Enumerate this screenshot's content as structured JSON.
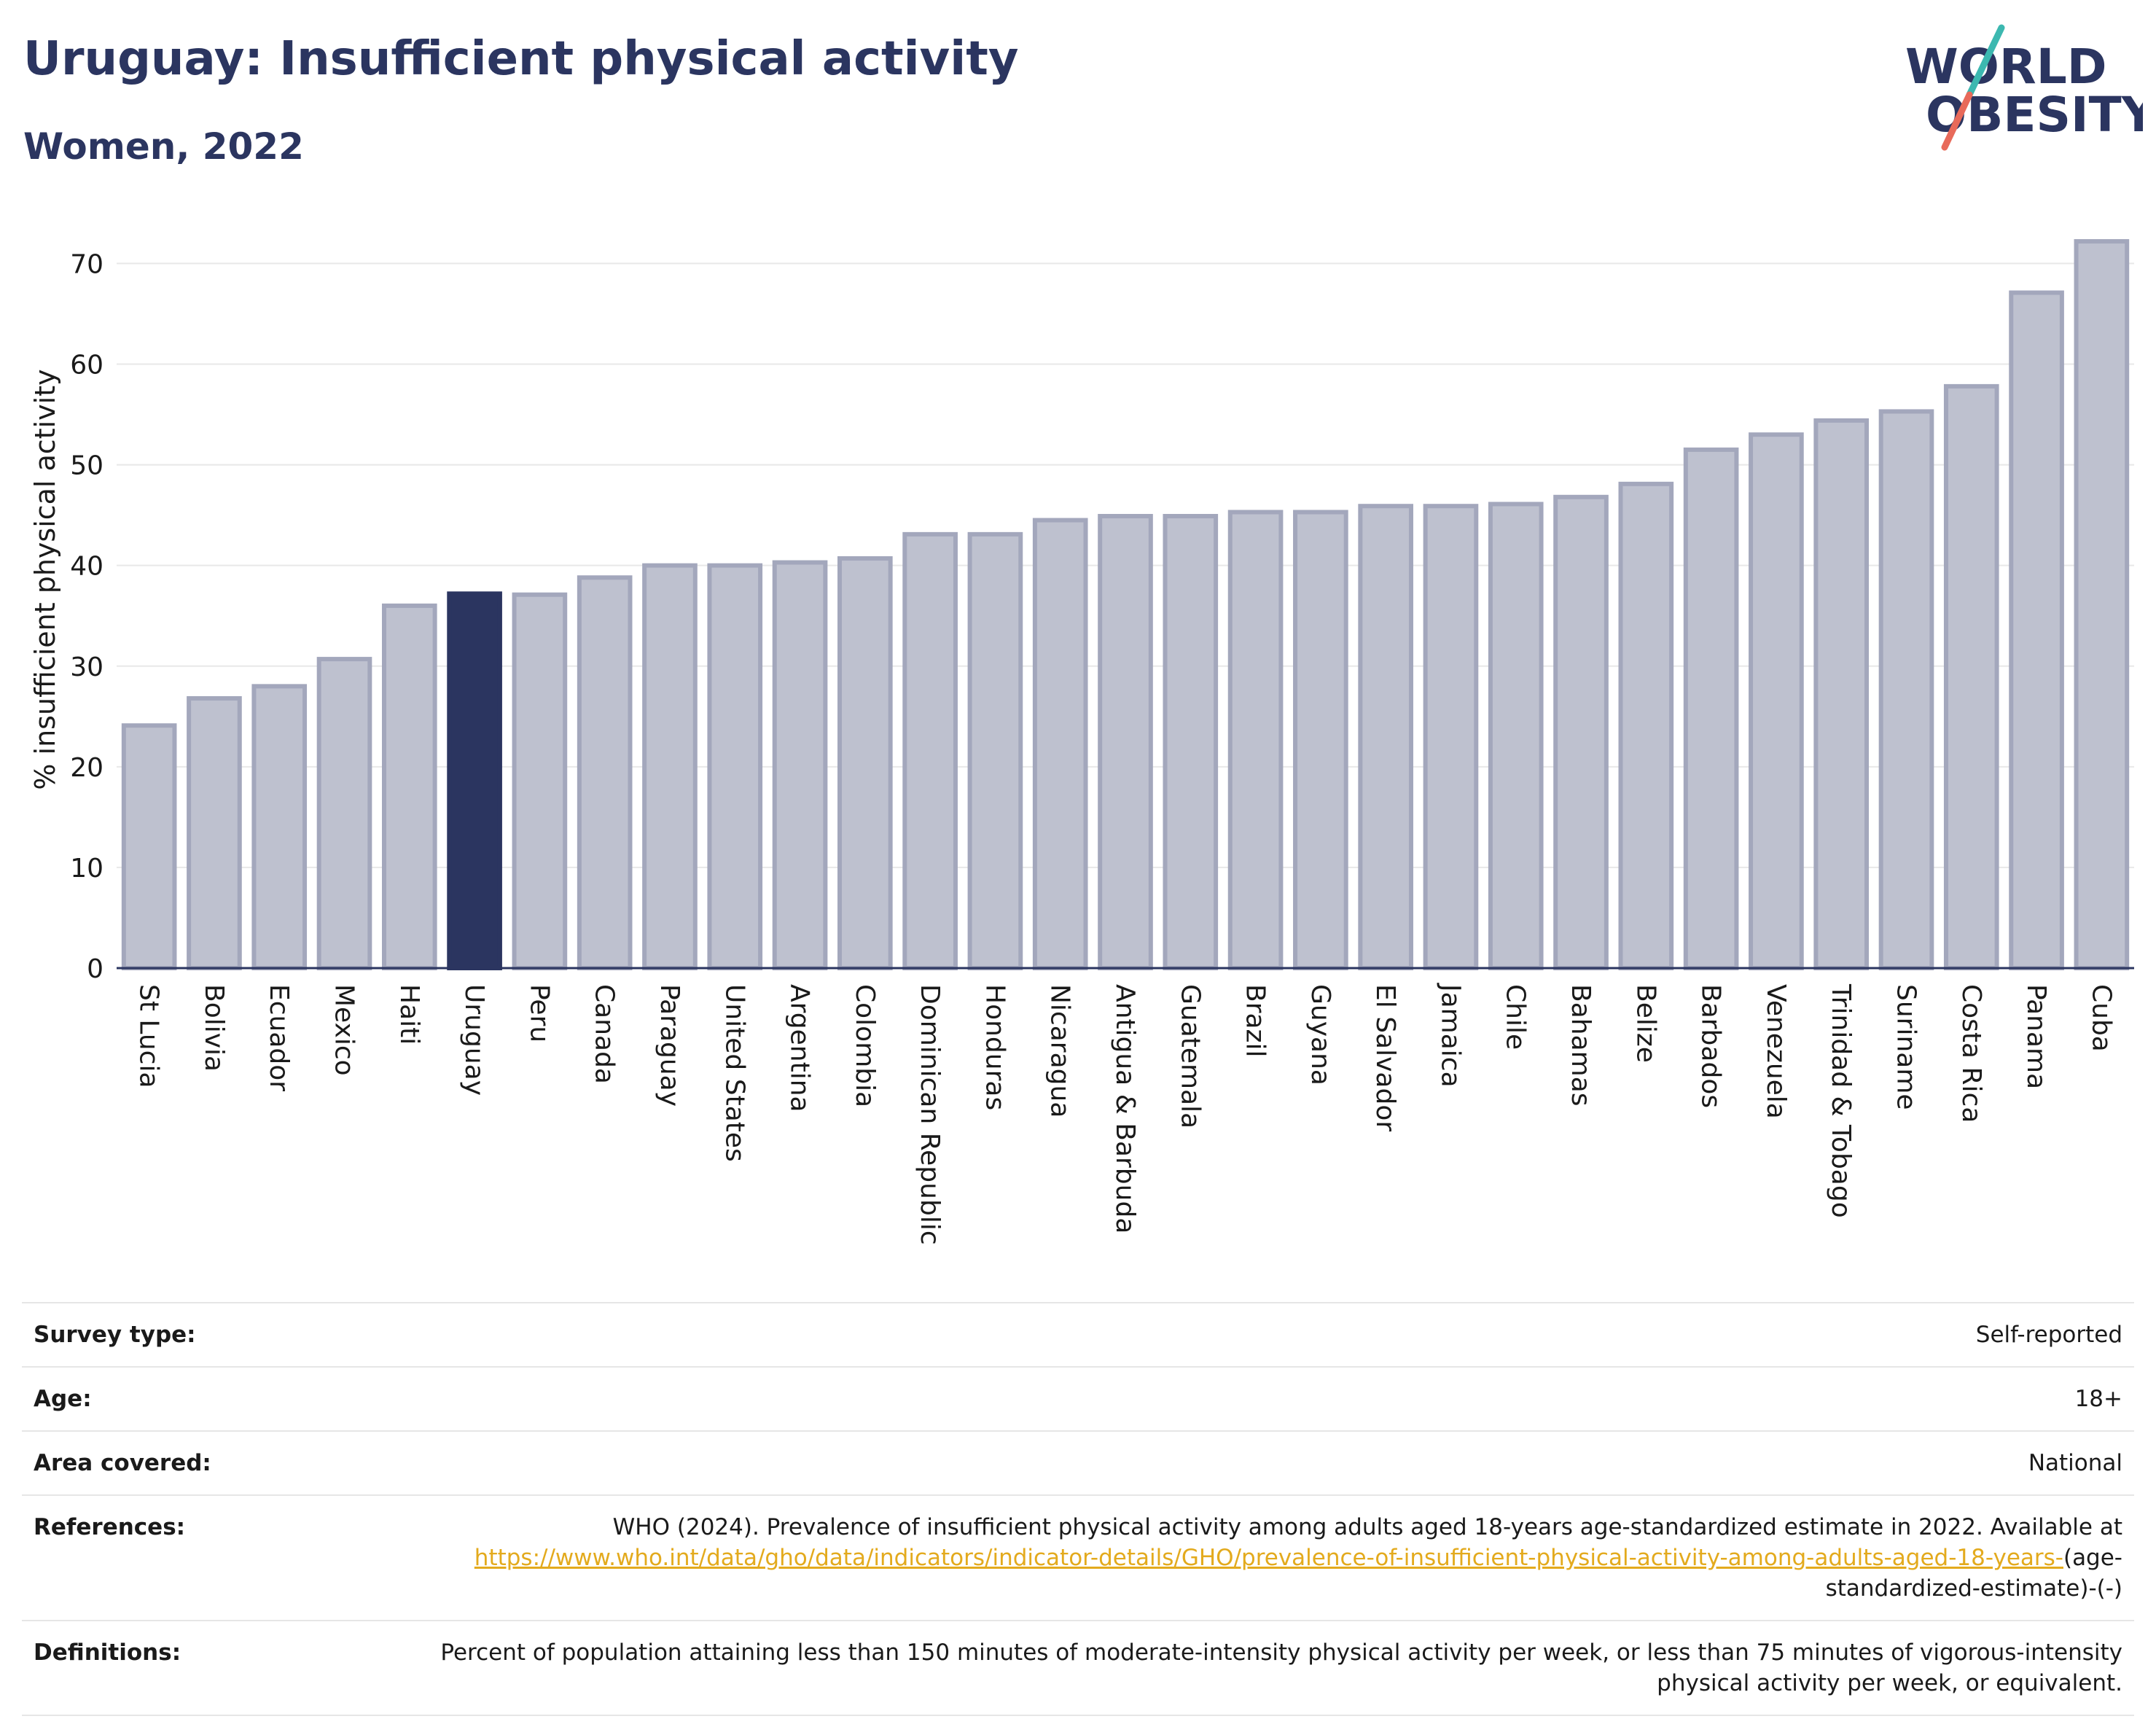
{
  "header": {
    "title": "Uruguay: Insufficient physical activity",
    "subtitle": "Women, 2022"
  },
  "logo": {
    "line1": "WORLD",
    "line2": "OBESITY"
  },
  "colors": {
    "bar": "#bec1cf",
    "bar_border": "#a3a7bc",
    "highlight": "#2b3560",
    "title": "#2b3560",
    "link": "#e3aa1d",
    "logo_teal": "#3cb8b0",
    "logo_coral": "#e86a5a"
  },
  "chart_data": {
    "type": "bar",
    "title": "Uruguay: Insufficient physical activity",
    "subtitle": "Women, 2022",
    "xlabel": "",
    "ylabel": "% insufficient physical activity",
    "ylim": [
      0,
      73
    ],
    "yticks": [
      0,
      10,
      20,
      30,
      40,
      50,
      60,
      70
    ],
    "grid": true,
    "highlight": "Uruguay",
    "categories": [
      "St Lucia",
      "Bolivia",
      "Ecuador",
      "Mexico",
      "Haiti",
      "Uruguay",
      "Peru",
      "Canada",
      "Paraguay",
      "United States",
      "Argentina",
      "Colombia",
      "Dominican Republic",
      "Honduras",
      "Nicaragua",
      "Antigua & Barbuda",
      "Guatemala",
      "Brazil",
      "Guyana",
      "El Salvador",
      "Jamaica",
      "Chile",
      "Bahamas",
      "Belize",
      "Barbados",
      "Venezuela",
      "Trinidad & Tobago",
      "Suriname",
      "Costa Rica",
      "Panama",
      "Cuba"
    ],
    "values": [
      24.1,
      26.8,
      28.0,
      30.7,
      36.0,
      37.2,
      37.1,
      38.8,
      40.0,
      40.0,
      40.3,
      40.7,
      43.1,
      43.1,
      44.5,
      44.9,
      44.9,
      45.3,
      45.3,
      45.9,
      45.9,
      46.1,
      46.8,
      48.1,
      51.5,
      53.0,
      54.4,
      55.3,
      57.8,
      67.1,
      72.2
    ]
  },
  "info_table": {
    "survey_type": {
      "label": "Survey type:",
      "value": "Self-reported"
    },
    "age": {
      "label": "Age:",
      "value": "18+"
    },
    "area": {
      "label": "Area covered:",
      "value": "National"
    },
    "references": {
      "label": "References:",
      "text": "WHO (2024). Prevalence of insufficient physical activity among adults aged 18-years age-standardized estimate in 2022. Available at",
      "link": "https://www.who.int/data/gho/data/indicators/indicator-details/GHO/prevalence-of-insufficient-physical-activity-among-adults-aged-18-years-",
      "suffix": "(age-standardized-estimate)-(-)"
    },
    "definitions": {
      "label": "Definitions:",
      "value": "Percent of population attaining less than 150 minutes of moderate-intensity physical activity per week, or less than 75 minutes of vigorous-intensity physical activity per week, or equivalent."
    }
  }
}
